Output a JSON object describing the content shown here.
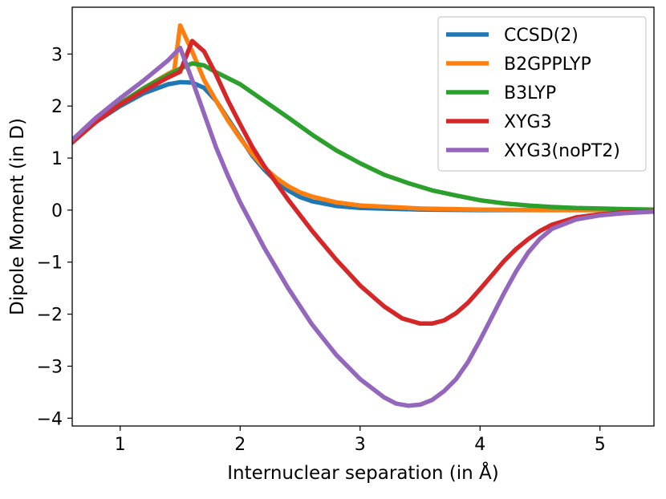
{
  "chart_data": {
    "type": "line",
    "title": "",
    "xlabel": "Internuclear separation (in Å)",
    "ylabel": "Dipole Moment (in D)",
    "xlim": [
      0.6,
      5.45
    ],
    "ylim": [
      -4.15,
      3.9
    ],
    "grid": false,
    "legend_position": "top-right",
    "x_ticks": [
      1,
      2,
      3,
      4,
      5
    ],
    "x_tick_labels": [
      "1",
      "2",
      "3",
      "4",
      "5"
    ],
    "y_ticks": [
      -4,
      -3,
      -2,
      -1,
      0,
      1,
      2,
      3
    ],
    "y_tick_labels": [
      "−4",
      "−3",
      "−2",
      "−1",
      "0",
      "1",
      "2",
      "3"
    ],
    "series": [
      {
        "name": "CCSD(2)",
        "color": "#1f77b4",
        "points": [
          [
            0.6,
            1.32
          ],
          [
            0.8,
            1.7
          ],
          [
            1.0,
            2.0
          ],
          [
            1.2,
            2.25
          ],
          [
            1.4,
            2.42
          ],
          [
            1.5,
            2.46
          ],
          [
            1.6,
            2.45
          ],
          [
            1.7,
            2.35
          ],
          [
            1.8,
            2.1
          ],
          [
            1.9,
            1.75
          ],
          [
            2.0,
            1.4
          ],
          [
            2.1,
            1.05
          ],
          [
            2.2,
            0.78
          ],
          [
            2.3,
            0.55
          ],
          [
            2.4,
            0.38
          ],
          [
            2.5,
            0.25
          ],
          [
            2.6,
            0.17
          ],
          [
            2.8,
            0.08
          ],
          [
            3.0,
            0.04
          ],
          [
            3.5,
            0.01
          ],
          [
            4.0,
            0.0
          ],
          [
            4.5,
            0.0
          ],
          [
            5.0,
            0.0
          ],
          [
            5.45,
            0.0
          ]
        ]
      },
      {
        "name": "B2GPPLYP",
        "color": "#ff7f0e",
        "points": [
          [
            0.6,
            1.32
          ],
          [
            0.8,
            1.72
          ],
          [
            1.0,
            2.05
          ],
          [
            1.2,
            2.35
          ],
          [
            1.4,
            2.62
          ],
          [
            1.45,
            2.68
          ],
          [
            1.5,
            3.55
          ],
          [
            1.6,
            3.05
          ],
          [
            1.7,
            2.5
          ],
          [
            1.8,
            2.1
          ],
          [
            1.9,
            1.72
          ],
          [
            2.0,
            1.38
          ],
          [
            2.1,
            1.08
          ],
          [
            2.2,
            0.82
          ],
          [
            2.3,
            0.62
          ],
          [
            2.4,
            0.46
          ],
          [
            2.5,
            0.34
          ],
          [
            2.6,
            0.26
          ],
          [
            2.8,
            0.15
          ],
          [
            3.0,
            0.09
          ],
          [
            3.5,
            0.03
          ],
          [
            4.0,
            0.01
          ],
          [
            4.5,
            0.0
          ],
          [
            5.0,
            0.0
          ],
          [
            5.45,
            0.0
          ]
        ]
      },
      {
        "name": "B3LYP",
        "color": "#2ca02c",
        "points": [
          [
            0.6,
            1.32
          ],
          [
            0.8,
            1.72
          ],
          [
            1.0,
            2.05
          ],
          [
            1.2,
            2.35
          ],
          [
            1.4,
            2.6
          ],
          [
            1.5,
            2.72
          ],
          [
            1.6,
            2.82
          ],
          [
            1.7,
            2.78
          ],
          [
            1.8,
            2.65
          ],
          [
            2.0,
            2.42
          ],
          [
            2.2,
            2.1
          ],
          [
            2.4,
            1.78
          ],
          [
            2.6,
            1.45
          ],
          [
            2.8,
            1.15
          ],
          [
            3.0,
            0.9
          ],
          [
            3.2,
            0.68
          ],
          [
            3.4,
            0.52
          ],
          [
            3.6,
            0.38
          ],
          [
            3.8,
            0.28
          ],
          [
            4.0,
            0.19
          ],
          [
            4.2,
            0.13
          ],
          [
            4.4,
            0.09
          ],
          [
            4.6,
            0.06
          ],
          [
            4.8,
            0.04
          ],
          [
            5.0,
            0.03
          ],
          [
            5.2,
            0.02
          ],
          [
            5.45,
            0.01
          ]
        ]
      },
      {
        "name": "XYG3",
        "color": "#d62728",
        "points": [
          [
            0.6,
            1.3
          ],
          [
            0.8,
            1.7
          ],
          [
            1.0,
            2.03
          ],
          [
            1.2,
            2.3
          ],
          [
            1.4,
            2.55
          ],
          [
            1.5,
            2.66
          ],
          [
            1.6,
            3.25
          ],
          [
            1.7,
            3.05
          ],
          [
            1.8,
            2.6
          ],
          [
            1.9,
            2.1
          ],
          [
            2.0,
            1.65
          ],
          [
            2.1,
            1.22
          ],
          [
            2.2,
            0.85
          ],
          [
            2.4,
            0.2
          ],
          [
            2.6,
            -0.4
          ],
          [
            2.8,
            -0.95
          ],
          [
            3.0,
            -1.45
          ],
          [
            3.2,
            -1.85
          ],
          [
            3.35,
            -2.08
          ],
          [
            3.5,
            -2.18
          ],
          [
            3.6,
            -2.18
          ],
          [
            3.7,
            -2.12
          ],
          [
            3.8,
            -1.98
          ],
          [
            3.9,
            -1.78
          ],
          [
            4.0,
            -1.52
          ],
          [
            4.1,
            -1.25
          ],
          [
            4.2,
            -0.98
          ],
          [
            4.3,
            -0.75
          ],
          [
            4.4,
            -0.56
          ],
          [
            4.5,
            -0.4
          ],
          [
            4.6,
            -0.28
          ],
          [
            4.8,
            -0.14
          ],
          [
            5.0,
            -0.08
          ],
          [
            5.2,
            -0.04
          ],
          [
            5.45,
            -0.02
          ]
        ]
      },
      {
        "name": "XYG3(noPT2)",
        "color": "#9467bd",
        "points": [
          [
            0.6,
            1.35
          ],
          [
            0.8,
            1.78
          ],
          [
            1.0,
            2.15
          ],
          [
            1.2,
            2.5
          ],
          [
            1.4,
            2.88
          ],
          [
            1.5,
            3.12
          ],
          [
            1.6,
            2.5
          ],
          [
            1.7,
            1.85
          ],
          [
            1.8,
            1.2
          ],
          [
            1.9,
            0.65
          ],
          [
            2.0,
            0.15
          ],
          [
            2.2,
            -0.72
          ],
          [
            2.4,
            -1.5
          ],
          [
            2.6,
            -2.2
          ],
          [
            2.8,
            -2.78
          ],
          [
            3.0,
            -3.25
          ],
          [
            3.2,
            -3.6
          ],
          [
            3.3,
            -3.72
          ],
          [
            3.4,
            -3.76
          ],
          [
            3.5,
            -3.74
          ],
          [
            3.6,
            -3.65
          ],
          [
            3.7,
            -3.48
          ],
          [
            3.8,
            -3.25
          ],
          [
            3.9,
            -2.92
          ],
          [
            4.0,
            -2.5
          ],
          [
            4.1,
            -2.05
          ],
          [
            4.2,
            -1.6
          ],
          [
            4.3,
            -1.18
          ],
          [
            4.4,
            -0.82
          ],
          [
            4.5,
            -0.55
          ],
          [
            4.6,
            -0.36
          ],
          [
            4.8,
            -0.18
          ],
          [
            5.0,
            -0.1
          ],
          [
            5.2,
            -0.06
          ],
          [
            5.45,
            -0.03
          ]
        ]
      }
    ]
  }
}
